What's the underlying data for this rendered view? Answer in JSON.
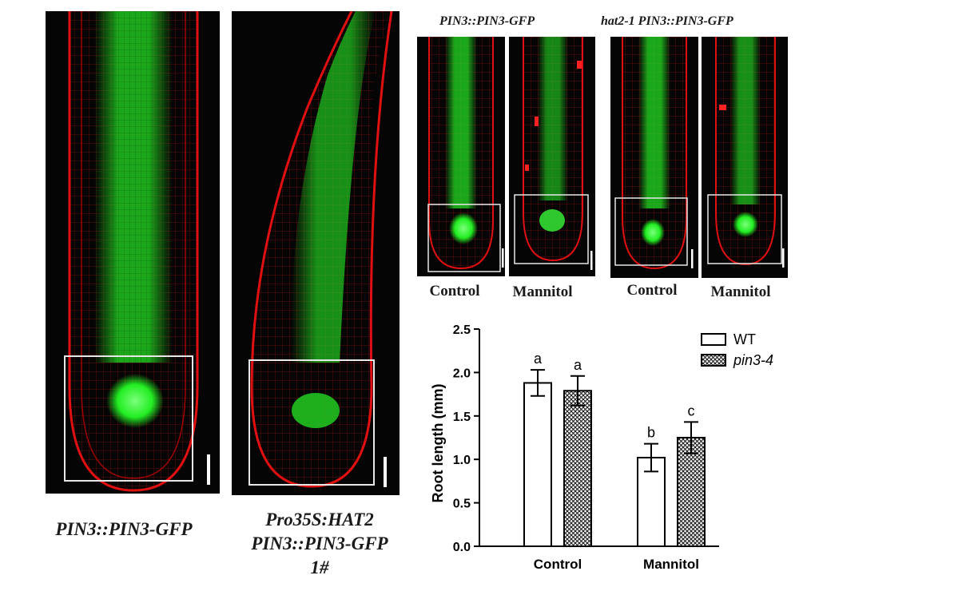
{
  "panels": {
    "left_captions": {
      "wt": "PIN3::PIN3-GFP",
      "oe_line1": "Pro35S:HAT2",
      "oe_line2": "PIN3::PIN3-GFP",
      "oe_line3": "1#"
    },
    "top_right_headers": {
      "wt": "PIN3::PIN3-GFP",
      "mutant": "hat2-1 PIN3::PIN3-GFP"
    },
    "condition_labels": [
      "Control",
      "Mannitol",
      "Control",
      "Mannitol"
    ],
    "colors": {
      "membrane": "#e01010",
      "gfp": "#22dd22",
      "background": "#050505",
      "box": "#e8e8e8"
    }
  },
  "chart_data": {
    "type": "bar",
    "categories": [
      "Control",
      "Mannitol"
    ],
    "series": [
      {
        "name": "WT",
        "values": [
          1.88,
          1.02
        ],
        "errors": [
          0.15,
          0.16
        ],
        "letters": [
          "a",
          "b"
        ],
        "fill": "white"
      },
      {
        "name": "pin3-4",
        "values": [
          1.79,
          1.25
        ],
        "errors": [
          0.17,
          0.18
        ],
        "letters": [
          "a",
          "c"
        ],
        "fill": "crosshatch"
      }
    ],
    "ylabel": "Root length (mm)",
    "xlabel": "",
    "ylim": [
      0,
      2.5
    ],
    "yticks": [
      "0.0",
      "0.5",
      "1.0",
      "1.5",
      "2.0",
      "2.5"
    ],
    "legend_position": "top-right",
    "grid": false
  }
}
